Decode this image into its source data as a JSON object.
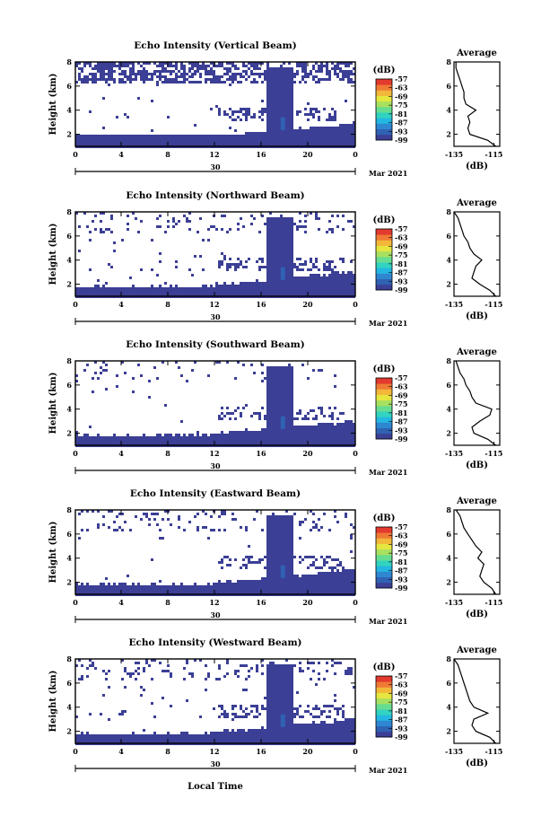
{
  "figure": {
    "xaxis_label": "Local Time",
    "date_day": "30",
    "date_month": "Mar 2021"
  },
  "colorbar": {
    "unit": "(dB)",
    "tick_labels": [
      "-57",
      "-63",
      "-69",
      "-75",
      "-81",
      "-87",
      "-93",
      "-99"
    ],
    "vmin": -99,
    "vmax": -57,
    "colors": [
      "#3b3f95",
      "#2f62b3",
      "#2f86d1",
      "#23b7e2",
      "#32d3c0",
      "#66dd90",
      "#a8e060",
      "#e6e640",
      "#f3b83a",
      "#f07a35",
      "#e23a2e"
    ]
  },
  "chart_data": [
    {
      "type": "heatmap",
      "title": "Echo Intensity (Vertical Beam)",
      "ylabel": "Height (km)",
      "xlim": [
        0,
        24
      ],
      "x_ticks": [
        "0",
        "4",
        "8",
        "12",
        "16",
        "20",
        "0"
      ],
      "ylim": [
        1,
        8
      ],
      "y_ticks": [
        "2",
        "4",
        "6",
        "8"
      ],
      "profile": {
        "title": "Average",
        "xlabel": "(dB)",
        "xlim": [
          -135,
          -112
        ],
        "x_ticks": [
          "-135",
          "-115"
        ],
        "y_ticks": [
          "2",
          "4",
          "6",
          "8"
        ],
        "height_km": [
          1.0,
          1.5,
          2.0,
          2.5,
          3.0,
          3.5,
          4.0,
          4.5,
          5.0,
          5.5,
          6.0,
          6.5,
          7.0,
          7.5,
          8.0
        ],
        "avg_db": [
          -114,
          -118,
          -127,
          -128,
          -127,
          -128,
          -124,
          -129,
          -130,
          -130,
          -131,
          -132,
          -133,
          -134,
          -134
        ]
      }
    },
    {
      "type": "heatmap",
      "title": "Echo Intensity (Northward Beam)",
      "ylabel": "Height (km)",
      "xlim": [
        0,
        24
      ],
      "x_ticks": [
        "0",
        "4",
        "8",
        "12",
        "16",
        "20",
        "0"
      ],
      "ylim": [
        1,
        8
      ],
      "y_ticks": [
        "2",
        "4",
        "6",
        "8"
      ],
      "profile": {
        "title": "Average",
        "xlabel": "(dB)",
        "xlim": [
          -135,
          -112
        ],
        "x_ticks": [
          "-135",
          "-115"
        ],
        "y_ticks": [
          "2",
          "4",
          "6",
          "8"
        ],
        "height_km": [
          1.0,
          1.5,
          2.0,
          2.5,
          3.0,
          3.5,
          4.0,
          4.5,
          5.0,
          5.5,
          6.0,
          6.5,
          7.0,
          7.5,
          8.0
        ],
        "avg_db": [
          -114,
          -117,
          -122,
          -126,
          -125,
          -124,
          -121,
          -125,
          -127,
          -128,
          -130,
          -131,
          -132,
          -133,
          -135
        ]
      }
    },
    {
      "type": "heatmap",
      "title": "Echo Intensity (Southward Beam)",
      "ylabel": "Height (km)",
      "xlim": [
        0,
        24
      ],
      "x_ticks": [
        "0",
        "4",
        "8",
        "12",
        "16",
        "20",
        "0"
      ],
      "ylim": [
        1,
        8
      ],
      "y_ticks": [
        "2",
        "4",
        "6",
        "8"
      ],
      "profile": {
        "title": "Average",
        "xlabel": "(dB)",
        "xlim": [
          -135,
          -112
        ],
        "x_ticks": [
          "-135",
          "-115"
        ],
        "y_ticks": [
          "2",
          "4",
          "6",
          "8"
        ],
        "height_km": [
          1.0,
          1.5,
          2.0,
          2.5,
          3.0,
          3.5,
          4.0,
          4.5,
          5.0,
          5.5,
          6.0,
          6.5,
          7.0,
          7.5,
          8.0
        ],
        "avg_db": [
          -114,
          -118,
          -125,
          -126,
          -122,
          -117,
          -116,
          -124,
          -126,
          -127,
          -129,
          -130,
          -132,
          -133,
          -134
        ]
      }
    },
    {
      "type": "heatmap",
      "title": "Echo Intensity (Eastward Beam)",
      "ylabel": "Height (km)",
      "xlim": [
        0,
        24
      ],
      "x_ticks": [
        "0",
        "4",
        "8",
        "12",
        "16",
        "20",
        "0"
      ],
      "ylim": [
        1,
        8
      ],
      "y_ticks": [
        "2",
        "4",
        "6",
        "8"
      ],
      "profile": {
        "title": "Average",
        "xlabel": "(dB)",
        "xlim": [
          -135,
          -112
        ],
        "x_ticks": [
          "-135",
          "-115"
        ],
        "y_ticks": [
          "2",
          "4",
          "6",
          "8"
        ],
        "height_km": [
          1.0,
          1.5,
          2.0,
          2.5,
          3.0,
          3.5,
          4.0,
          4.5,
          5.0,
          5.5,
          6.0,
          6.5,
          7.0,
          7.5,
          8.0
        ],
        "avg_db": [
          -114,
          -116,
          -120,
          -122,
          -121,
          -120,
          -123,
          -121,
          -124,
          -126,
          -128,
          -130,
          -131,
          -132,
          -134
        ]
      }
    },
    {
      "type": "heatmap",
      "title": "Echo Intensity (Westward Beam)",
      "ylabel": "Height (km)",
      "xlim": [
        0,
        24
      ],
      "x_ticks": [
        "0",
        "4",
        "8",
        "12",
        "16",
        "20",
        "0"
      ],
      "ylim": [
        1,
        8
      ],
      "y_ticks": [
        "2",
        "4",
        "6",
        "8"
      ],
      "profile": {
        "title": "Average",
        "xlabel": "(dB)",
        "xlim": [
          -135,
          -112
        ],
        "x_ticks": [
          "-135",
          "-115"
        ],
        "y_ticks": [
          "2",
          "4",
          "6",
          "8"
        ],
        "height_km": [
          1.0,
          1.5,
          2.0,
          2.5,
          3.0,
          3.5,
          4.0,
          4.5,
          5.0,
          5.5,
          6.0,
          6.5,
          7.0,
          7.5,
          8.0
        ],
        "avg_db": [
          -114,
          -117,
          -124,
          -126,
          -125,
          -118,
          -125,
          -127,
          -128,
          -129,
          -130,
          -131,
          -132,
          -133,
          -135
        ]
      }
    }
  ]
}
